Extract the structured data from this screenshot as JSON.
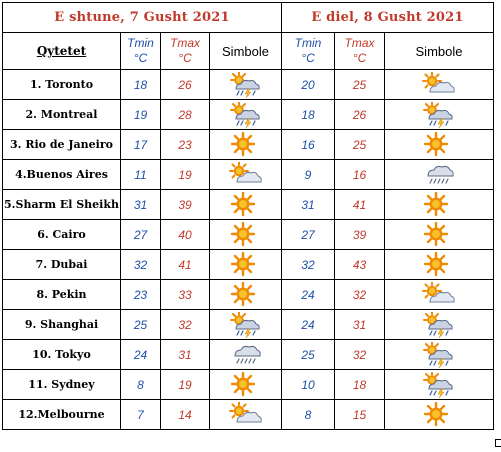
{
  "header": {
    "day1": "E shtune, 7 Gusht 2021",
    "day2": "E diel, 8 Gusht 2021"
  },
  "columns": {
    "city": "Qytetet",
    "tmin": "Tmin",
    "tmax": "Tmax",
    "unit": "°C",
    "symbol": "Simbole"
  },
  "rows": [
    {
      "city": "1. Toronto",
      "d1": {
        "tmin": "18",
        "tmax": "26",
        "icon": "sun-cloud-storm-icon"
      },
      "d2": {
        "tmin": "20",
        "tmax": "25",
        "icon": "sun-cloud-icon"
      }
    },
    {
      "city": "2. Montreal",
      "d1": {
        "tmin": "19",
        "tmax": "28",
        "icon": "sun-cloud-storm-icon"
      },
      "d2": {
        "tmin": "18",
        "tmax": "26",
        "icon": "sun-cloud-storm-icon"
      }
    },
    {
      "city": "3. Rio de Janeiro",
      "d1": {
        "tmin": "17",
        "tmax": "23",
        "icon": "sun-icon"
      },
      "d2": {
        "tmin": "16",
        "tmax": "25",
        "icon": "sun-icon"
      }
    },
    {
      "city": "4.Buenos Aires",
      "d1": {
        "tmin": "11",
        "tmax": "19",
        "icon": "sun-cloud-icon"
      },
      "d2": {
        "tmin": "9",
        "tmax": "16",
        "icon": "cloud-rain-icon"
      }
    },
    {
      "city": "5.Sharm El Sheikh",
      "d1": {
        "tmin": "31",
        "tmax": "39",
        "icon": "sun-icon"
      },
      "d2": {
        "tmin": "31",
        "tmax": "41",
        "icon": "sun-icon"
      }
    },
    {
      "city": "6. Cairo",
      "d1": {
        "tmin": "27",
        "tmax": "40",
        "icon": "sun-icon"
      },
      "d2": {
        "tmin": "27",
        "tmax": "39",
        "icon": "sun-icon"
      }
    },
    {
      "city": "7. Dubai",
      "d1": {
        "tmin": "32",
        "tmax": "41",
        "icon": "sun-icon"
      },
      "d2": {
        "tmin": "32",
        "tmax": "43",
        "icon": "sun-icon"
      }
    },
    {
      "city": "8. Pekin",
      "d1": {
        "tmin": "23",
        "tmax": "33",
        "icon": "sun-icon"
      },
      "d2": {
        "tmin": "24",
        "tmax": "32",
        "icon": "sun-cloud-icon"
      }
    },
    {
      "city": "9. Shanghai",
      "d1": {
        "tmin": "25",
        "tmax": "32",
        "icon": "sun-cloud-storm-icon"
      },
      "d2": {
        "tmin": "24",
        "tmax": "31",
        "icon": "sun-cloud-storm-icon"
      }
    },
    {
      "city": "10. Tokyo",
      "d1": {
        "tmin": "24",
        "tmax": "31",
        "icon": "cloud-rain-icon"
      },
      "d2": {
        "tmin": "25",
        "tmax": "32",
        "icon": "sun-cloud-storm-icon"
      }
    },
    {
      "city": "11. Sydney",
      "d1": {
        "tmin": "8",
        "tmax": "19",
        "icon": "sun-icon"
      },
      "d2": {
        "tmin": "10",
        "tmax": "18",
        "icon": "sun-cloud-storm-icon"
      }
    },
    {
      "city": "12.Melbourne",
      "d1": {
        "tmin": "7",
        "tmax": "14",
        "icon": "sun-cloud-icon"
      },
      "d2": {
        "tmin": "8",
        "tmax": "15",
        "icon": "sun-icon"
      }
    }
  ],
  "colors": {
    "title_red": "#c0392b",
    "tmin_blue": "#1f4fa8",
    "tmax_red": "#c0392b",
    "sun_orange": "#f08a00",
    "sun_core": "#f6c12a"
  }
}
